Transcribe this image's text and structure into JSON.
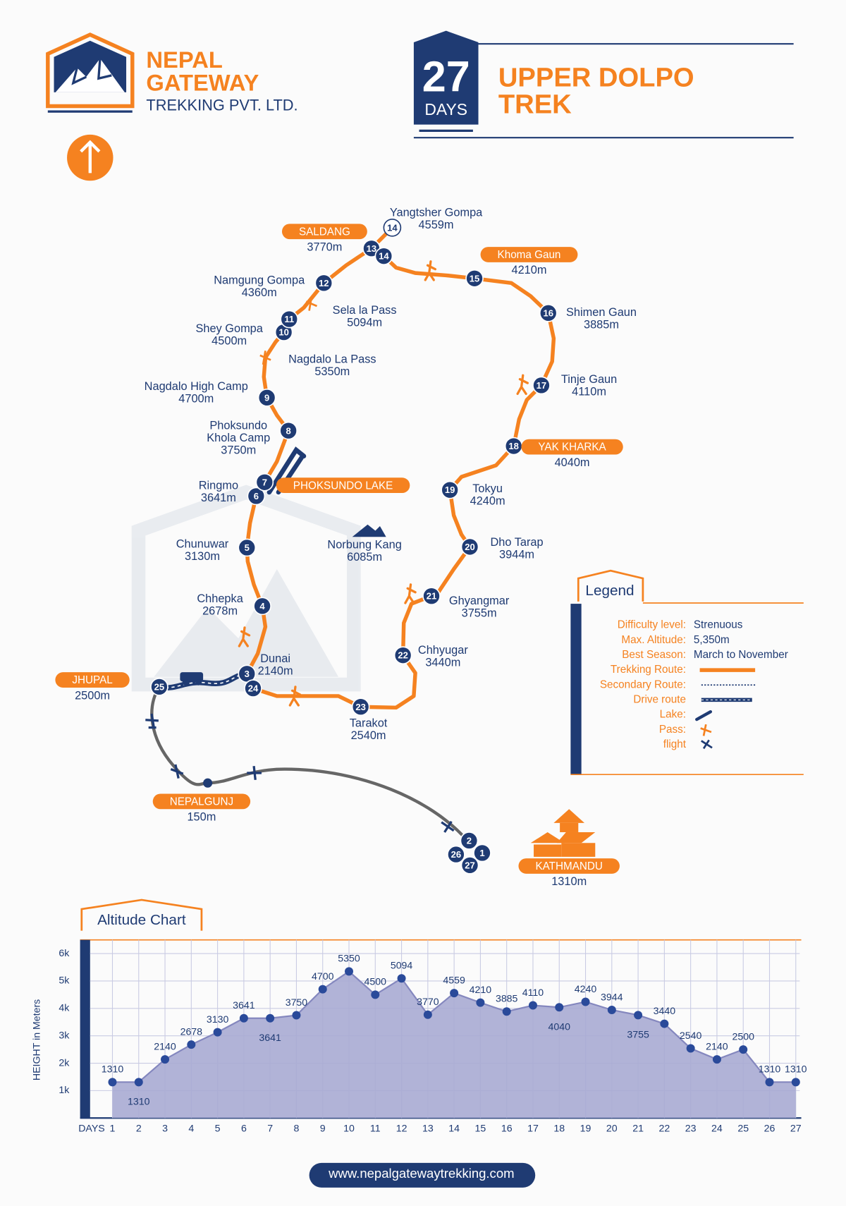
{
  "header": {
    "brand": [
      "NEPAL",
      "GATEWAY"
    ],
    "company": "TREKKING PVT. LTD.",
    "days_number": "27",
    "days_label": "DAYS",
    "trek_title": [
      "UPPER DOLPO",
      "TREK"
    ]
  },
  "map": {
    "stops": [
      "1",
      "2",
      "3",
      "4",
      "5",
      "6",
      "7",
      "8",
      "9",
      "10",
      "11",
      "12",
      "13",
      "14",
      "15",
      "16",
      "17",
      "18",
      "19",
      "20",
      "21",
      "22",
      "23",
      "24",
      "25",
      "26",
      "27",
      "14"
    ],
    "places": [
      {
        "lines": [
          "Yangtsher Gompa",
          "4559m"
        ]
      },
      {
        "lines": [
          "SALDANG",
          "3770m"
        ]
      },
      {
        "lines": [
          "Khoma Gaun",
          "4210m"
        ]
      },
      {
        "lines": [
          "Namgung Gompa",
          "4360m"
        ]
      },
      {
        "lines": [
          "Sela la Pass",
          "5094m"
        ]
      },
      {
        "lines": [
          "Shey Gompa",
          "4500m"
        ]
      },
      {
        "lines": [
          "Shimen  Gaun",
          "3885m"
        ]
      },
      {
        "lines": [
          "Nagdalo La Pass",
          "5350m"
        ]
      },
      {
        "lines": [
          "Nagdalo High Camp",
          "4700m"
        ]
      },
      {
        "lines": [
          "Tinje Gaun",
          "4110m"
        ]
      },
      {
        "lines": [
          "Phoksundo",
          "Khola Camp",
          "3750m"
        ]
      },
      {
        "lines": [
          "YAK KHARKA",
          "4040m"
        ]
      },
      {
        "lines": [
          "PHOKSUNDO LAKE"
        ]
      },
      {
        "lines": [
          "Ringmo",
          "3641m"
        ]
      },
      {
        "lines": [
          "Tokyu",
          "4240m"
        ]
      },
      {
        "lines": [
          "Norbung Kang",
          "6085m"
        ]
      },
      {
        "lines": [
          "Chunuwar",
          "3130m"
        ]
      },
      {
        "lines": [
          "Dho Tarap",
          "3944m"
        ]
      },
      {
        "lines": [
          "Chhepka",
          "2678m"
        ]
      },
      {
        "lines": [
          "Ghyangmar",
          "3755m"
        ]
      },
      {
        "lines": [
          "Dunai",
          "2140m"
        ]
      },
      {
        "lines": [
          "Chhyugar",
          "3440m"
        ]
      },
      {
        "lines": [
          "JHUPAL",
          "2500m"
        ]
      },
      {
        "lines": [
          "Tarakot",
          "2540m"
        ]
      },
      {
        "lines": [
          "NEPALGUNJ",
          "150m"
        ]
      },
      {
        "lines": [
          "KATHMANDU",
          "1310m"
        ]
      }
    ]
  },
  "legend": {
    "title": "Legend",
    "rows": [
      {
        "label": "Difficulty level:",
        "value": "Strenuous"
      },
      {
        "label": "Max. Altitude:",
        "value": "5,350m"
      },
      {
        "label": "Best Season:",
        "value": "March to November"
      },
      {
        "label": "Trekking Route:"
      },
      {
        "label": "Secondary Route:"
      },
      {
        "label": "Drive route"
      },
      {
        "label": "Lake:"
      },
      {
        "label": "Pass:"
      },
      {
        "label": "flight"
      }
    ]
  },
  "altitude_chart": {
    "type": "area",
    "title": "Altitude Chart",
    "y_label": "HEIGHT in Meters",
    "x_label": "DAYS",
    "x": [
      1,
      2,
      3,
      4,
      5,
      6,
      7,
      8,
      9,
      10,
      11,
      12,
      13,
      14,
      15,
      16,
      17,
      18,
      19,
      20,
      21,
      22,
      23,
      24,
      25,
      26,
      27
    ],
    "values": [
      1310,
      1310,
      2140,
      2678,
      3130,
      3641,
      3641,
      3750,
      4700,
      5350,
      4500,
      5094,
      3770,
      4559,
      4210,
      3885,
      4110,
      4040,
      4240,
      3944,
      3755,
      3440,
      2540,
      2140,
      2500,
      1310,
      1310
    ],
    "xlim": [
      0.15,
      27.15
    ],
    "ylim": [
      0,
      6500
    ],
    "yticks": [
      {
        "value": 1000,
        "label": "1k"
      },
      {
        "value": 2000,
        "label": "2k"
      },
      {
        "value": 3000,
        "label": "3k"
      },
      {
        "value": 4000,
        "label": "4k"
      },
      {
        "value": 5000,
        "label": "5k"
      },
      {
        "value": 6000,
        "label": "6k"
      }
    ],
    "grid": true,
    "color": "#a9abd3"
  },
  "footer": {
    "website": "www.nepalgatewaytrekking.com"
  }
}
